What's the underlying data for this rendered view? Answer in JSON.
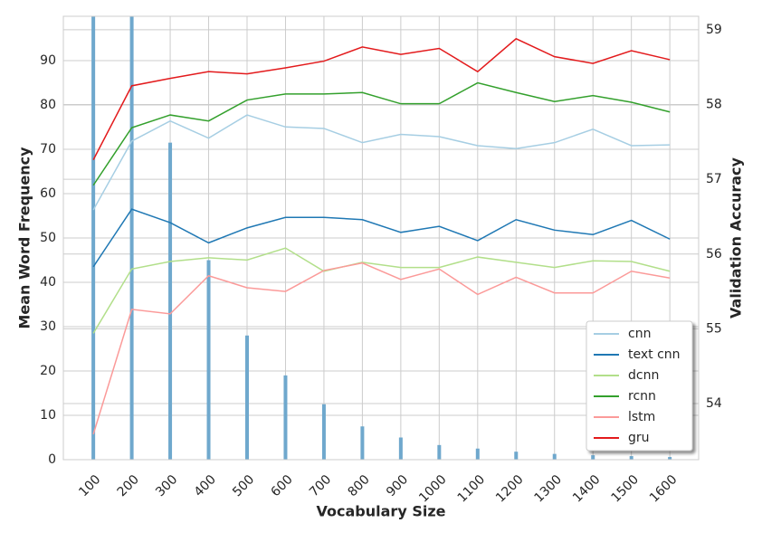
{
  "chart_data": {
    "type": "combo",
    "x_label": "Vocabulary Size",
    "y_label": "Mean Word Frequency",
    "y2_label": "Validation Accuracy",
    "x": [
      100,
      200,
      300,
      400,
      500,
      600,
      700,
      800,
      900,
      1000,
      1100,
      1200,
      1300,
      1400,
      1500,
      1600
    ],
    "xlim": [
      22,
      1675
    ],
    "xticks": [
      100,
      200,
      300,
      400,
      500,
      600,
      700,
      800,
      900,
      1000,
      1100,
      1200,
      1300,
      1400,
      1500,
      1600
    ],
    "ylim": [
      0,
      100
    ],
    "yticks": [
      0,
      10,
      20,
      30,
      40,
      50,
      60,
      70,
      80,
      90
    ],
    "y2lim": [
      53.25,
      59.18
    ],
    "y2ticks": [
      54,
      55,
      56,
      57,
      58,
      59
    ],
    "grid": true,
    "legend": "lower right",
    "bars": {
      "color": "#6fa8cd",
      "values": [
        100,
        100,
        71.5,
        45,
        28,
        19,
        12.5,
        7.5,
        5,
        3.3,
        2.5,
        1.8,
        1.3,
        1,
        0.8,
        0.6
      ]
    },
    "series": [
      {
        "name": "cnn",
        "color": "#a6cee3",
        "axis": "y2",
        "values": [
          56.59,
          57.51,
          57.78,
          57.55,
          57.86,
          57.7,
          57.68,
          57.49,
          57.6,
          57.57,
          57.45,
          57.41,
          57.49,
          57.67,
          57.45,
          57.46
        ]
      },
      {
        "name": "text cnn",
        "color": "#1f78b4",
        "axis": "y2",
        "values": [
          55.83,
          56.6,
          56.42,
          56.15,
          56.35,
          56.49,
          56.49,
          56.46,
          56.29,
          56.37,
          56.18,
          56.46,
          56.32,
          56.26,
          56.45,
          56.2
        ]
      },
      {
        "name": "dcnn",
        "color": "#b2df8a",
        "axis": "y2",
        "values": [
          54.94,
          55.8,
          55.9,
          55.95,
          55.92,
          56.08,
          55.77,
          55.89,
          55.82,
          55.82,
          55.96,
          55.89,
          55.82,
          55.91,
          55.9,
          55.77
        ]
      },
      {
        "name": "rcnn",
        "color": "#33a02c",
        "axis": "y2",
        "values": [
          56.92,
          57.69,
          57.86,
          57.78,
          58.06,
          58.14,
          58.14,
          58.16,
          58.01,
          58.01,
          58.29,
          58.16,
          58.04,
          58.12,
          58.03,
          57.9
        ]
      },
      {
        "name": "lstm",
        "color": "#fb9a99",
        "axis": "y2",
        "values": [
          53.59,
          55.26,
          55.2,
          55.71,
          55.55,
          55.5,
          55.78,
          55.88,
          55.66,
          55.8,
          55.46,
          55.69,
          55.48,
          55.48,
          55.77,
          55.68
        ]
      },
      {
        "name": "gru",
        "color": "#e31a1c",
        "axis": "y2",
        "values": [
          57.26,
          58.25,
          58.35,
          58.44,
          58.41,
          58.49,
          58.58,
          58.77,
          58.67,
          58.75,
          58.44,
          58.88,
          58.64,
          58.55,
          58.72,
          58.6
        ]
      }
    ]
  }
}
